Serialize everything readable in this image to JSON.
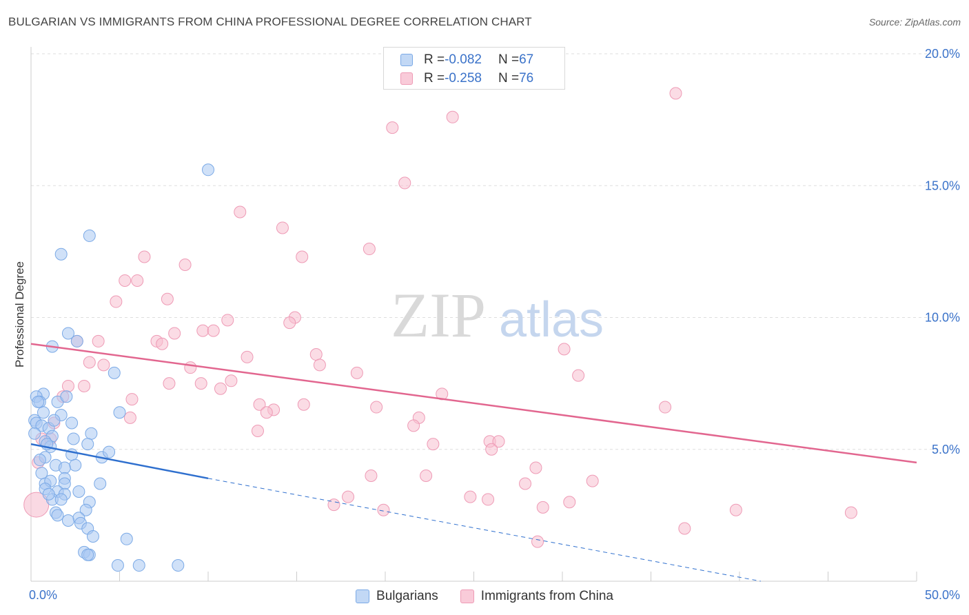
{
  "header": {
    "title": "BULGARIAN VS IMMIGRANTS FROM CHINA PROFESSIONAL DEGREE CORRELATION CHART",
    "source": "Source: ZipAtlas.com"
  },
  "watermark": {
    "zip": "ZIP",
    "atlas": "atlas"
  },
  "legend_top": {
    "rows": [
      {
        "r_label": "R = ",
        "r_value": "-0.082",
        "n_label": "N = ",
        "n_value": "67"
      },
      {
        "r_label": "R = ",
        "r_value": "-0.258",
        "n_label": "N = ",
        "n_value": "76"
      }
    ]
  },
  "legend_bottom": {
    "items": [
      "Bulgarians",
      "Immigrants from China"
    ]
  },
  "colors": {
    "blue_fill": "#a9c9f2",
    "blue_stroke": "#7aa9e6",
    "blue_line": "#2e6fce",
    "pink_fill": "#f7bfd0",
    "pink_stroke": "#ee9ab5",
    "pink_line": "#e2668f",
    "tick_label": "#3a72c9",
    "grid": "#dddddd"
  },
  "chart_data": {
    "type": "scatter",
    "title": "BULGARIAN VS IMMIGRANTS FROM CHINA PROFESSIONAL DEGREE CORRELATION CHART",
    "xlabel": "",
    "ylabel": "Professional Degree",
    "xlim": [
      0,
      50
    ],
    "ylim": [
      0,
      20
    ],
    "x_tick_labels": [
      "0.0%",
      "50.0%"
    ],
    "y_ticks": [
      5,
      10,
      15,
      20
    ],
    "y_tick_labels": [
      "5.0%",
      "10.0%",
      "15.0%",
      "20.0%"
    ],
    "grid": true,
    "legend_position": "bottom",
    "series": [
      {
        "name": "Bulgarians",
        "R": -0.082,
        "N": 67,
        "trend_solid": {
          "x": [
            0,
            10
          ],
          "y": [
            5.2,
            3.9
          ]
        },
        "trend_dashed": {
          "x": [
            10,
            41.2
          ],
          "y": [
            3.9,
            0
          ]
        },
        "points": [
          [
            10,
            15.6
          ],
          [
            3.3,
            13.1
          ],
          [
            1.7,
            12.4
          ],
          [
            2.1,
            9.4
          ],
          [
            1.2,
            8.9
          ],
          [
            2.6,
            9.1
          ],
          [
            4.7,
            7.9
          ],
          [
            0.7,
            7.1
          ],
          [
            0.3,
            7.0
          ],
          [
            0.5,
            6.8
          ],
          [
            1.5,
            6.8
          ],
          [
            0.4,
            6.8
          ],
          [
            0.7,
            6.4
          ],
          [
            1.7,
            6.3
          ],
          [
            5.0,
            6.4
          ],
          [
            0.2,
            6.1
          ],
          [
            0.3,
            6.0
          ],
          [
            0.6,
            5.9
          ],
          [
            2.3,
            6.0
          ],
          [
            1.0,
            5.8
          ],
          [
            0.2,
            5.6
          ],
          [
            1.2,
            5.5
          ],
          [
            0.8,
            5.3
          ],
          [
            1.1,
            5.1
          ],
          [
            3.4,
            5.6
          ],
          [
            3.2,
            5.2
          ],
          [
            0.8,
            4.7
          ],
          [
            2.3,
            4.8
          ],
          [
            4.0,
            4.7
          ],
          [
            0.5,
            4.6
          ],
          [
            1.4,
            4.4
          ],
          [
            2.5,
            4.4
          ],
          [
            1.9,
            4.3
          ],
          [
            1.9,
            3.9
          ],
          [
            0.8,
            3.7
          ],
          [
            1.1,
            3.8
          ],
          [
            1.9,
            3.7
          ],
          [
            3.9,
            3.7
          ],
          [
            1.5,
            3.4
          ],
          [
            1.9,
            3.3
          ],
          [
            2.7,
            3.4
          ],
          [
            0.8,
            3.5
          ],
          [
            1.2,
            3.1
          ],
          [
            1.7,
            3.1
          ],
          [
            3.3,
            3.0
          ],
          [
            3.1,
            2.7
          ],
          [
            1.4,
            2.6
          ],
          [
            1.5,
            2.5
          ],
          [
            2.7,
            2.4
          ],
          [
            2.1,
            2.3
          ],
          [
            2.8,
            2.2
          ],
          [
            3.2,
            2.0
          ],
          [
            3.5,
            1.7
          ],
          [
            5.4,
            1.6
          ],
          [
            3.0,
            1.1
          ],
          [
            3.3,
            1.0
          ],
          [
            3.2,
            1.0
          ],
          [
            4.9,
            0.6
          ],
          [
            6.1,
            0.6
          ],
          [
            8.3,
            0.6
          ],
          [
            0.9,
            5.2
          ],
          [
            1.3,
            6.1
          ],
          [
            2.0,
            7.0
          ],
          [
            0.6,
            4.1
          ],
          [
            2.4,
            5.4
          ],
          [
            1.0,
            3.3
          ],
          [
            4.4,
            4.9
          ]
        ]
      },
      {
        "name": "Immigrants from China",
        "R": -0.258,
        "N": 76,
        "trend_solid": {
          "x": [
            0,
            50
          ],
          "y": [
            9.0,
            4.5
          ]
        },
        "points": [
          [
            36.4,
            18.5
          ],
          [
            23.8,
            17.6
          ],
          [
            20.4,
            17.2
          ],
          [
            21.1,
            15.1
          ],
          [
            11.8,
            14.0
          ],
          [
            14.2,
            13.4
          ],
          [
            19.1,
            12.6
          ],
          [
            6.4,
            12.3
          ],
          [
            15.3,
            12.3
          ],
          [
            8.7,
            12.0
          ],
          [
            5.3,
            11.4
          ],
          [
            6.0,
            11.4
          ],
          [
            4.8,
            10.6
          ],
          [
            7.7,
            10.7
          ],
          [
            11.1,
            9.9
          ],
          [
            14.9,
            10.0
          ],
          [
            14.6,
            9.8
          ],
          [
            9.7,
            9.5
          ],
          [
            10.3,
            9.5
          ],
          [
            8.1,
            9.4
          ],
          [
            7.1,
            9.1
          ],
          [
            7.4,
            9.0
          ],
          [
            3.8,
            9.1
          ],
          [
            2.6,
            9.1
          ],
          [
            30.1,
            8.8
          ],
          [
            12.2,
            8.5
          ],
          [
            16.1,
            8.6
          ],
          [
            16.3,
            8.2
          ],
          [
            3.3,
            8.3
          ],
          [
            4.1,
            8.2
          ],
          [
            9.0,
            8.1
          ],
          [
            18.4,
            7.9
          ],
          [
            30.9,
            7.8
          ],
          [
            11.3,
            7.6
          ],
          [
            7.8,
            7.5
          ],
          [
            9.6,
            7.5
          ],
          [
            10.7,
            7.3
          ],
          [
            2.1,
            7.4
          ],
          [
            3.0,
            7.4
          ],
          [
            23.2,
            7.1
          ],
          [
            1.8,
            7.0
          ],
          [
            5.7,
            6.9
          ],
          [
            12.9,
            6.7
          ],
          [
            15.4,
            6.7
          ],
          [
            19.5,
            6.6
          ],
          [
            35.8,
            6.6
          ],
          [
            13.7,
            6.5
          ],
          [
            13.3,
            6.4
          ],
          [
            5.6,
            6.2
          ],
          [
            21.9,
            6.2
          ],
          [
            12.8,
            5.7
          ],
          [
            21.6,
            5.9
          ],
          [
            1.3,
            6.0
          ],
          [
            25.9,
            5.3
          ],
          [
            26.4,
            5.3
          ],
          [
            22.7,
            5.2
          ],
          [
            26.0,
            5.0
          ],
          [
            0.6,
            5.4
          ],
          [
            1.1,
            5.4
          ],
          [
            28.5,
            4.3
          ],
          [
            19.2,
            4.0
          ],
          [
            22.3,
            4.0
          ],
          [
            27.9,
            3.7
          ],
          [
            31.7,
            3.8
          ],
          [
            24.8,
            3.2
          ],
          [
            17.9,
            3.2
          ],
          [
            25.8,
            3.1
          ],
          [
            30.4,
            3.0
          ],
          [
            17.1,
            2.9
          ],
          [
            19.9,
            2.7
          ],
          [
            28.9,
            2.8
          ],
          [
            39.8,
            2.7
          ],
          [
            46.3,
            2.6
          ],
          [
            36.9,
            2.0
          ],
          [
            28.6,
            1.5
          ],
          [
            0.4,
            4.5
          ]
        ],
        "large_point": [
          0.3,
          2.9
        ]
      }
    ]
  }
}
